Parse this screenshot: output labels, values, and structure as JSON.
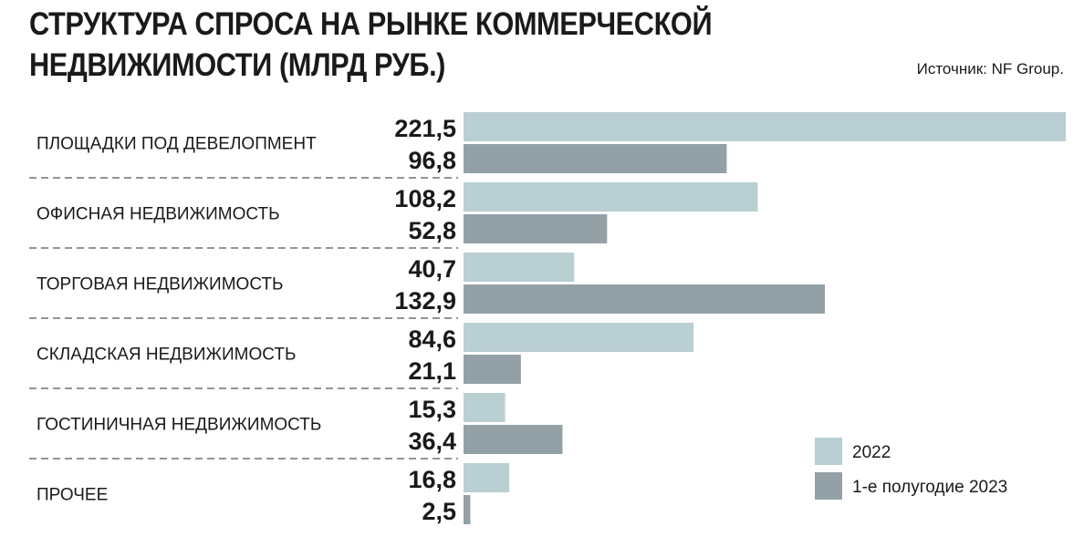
{
  "chart_data": {
    "type": "bar",
    "orientation": "horizontal",
    "title": "СТРУКТУРА СПРОСА НА РЫНКЕ КОММЕРЧЕСКОЙ НЕДВИЖИМОСТИ (МЛРД РУБ.)",
    "source": "Источник: NF Group.",
    "categories": [
      "ПЛОЩАДКИ ПОД ДЕВЕЛОПМЕНТ",
      "ОФИСНАЯ НЕДВИЖИМОСТЬ",
      "ТОРГОВАЯ НЕДВИЖИМОСТЬ",
      "СКЛАДСКАЯ НЕДВИЖИМОСТЬ",
      "ГОСТИНИЧНАЯ НЕДВИЖИМОСТЬ",
      "ПРОЧЕЕ"
    ],
    "series": [
      {
        "name": "2022",
        "color": "#b9cfd2",
        "values": [
          221.5,
          108.2,
          40.7,
          84.6,
          15.3,
          16.8
        ],
        "labels": [
          "221,5",
          "108,2",
          "40,7",
          "84,6",
          "15,3",
          "16,8"
        ]
      },
      {
        "name": "1-е полугодие 2023",
        "color": "#93a1a7",
        "values": [
          96.8,
          52.8,
          132.9,
          21.1,
          36.4,
          2.5
        ],
        "labels": [
          "96,8",
          "52,8",
          "132,9",
          "21,1",
          "36,4",
          "2,5"
        ]
      }
    ],
    "xlim": [
      0,
      221.5
    ],
    "grid": false,
    "legend": "bottom-right"
  }
}
